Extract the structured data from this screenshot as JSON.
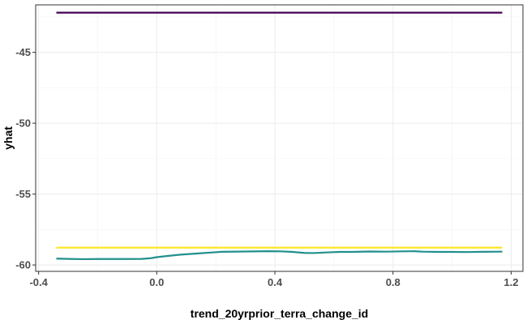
{
  "chart_data": {
    "type": "line",
    "title": "",
    "xlabel": "trend_20yrprior_terra_change_id",
    "ylabel": "yhat",
    "xlim": [
      -0.41,
      1.24
    ],
    "ylim": [
      -60.45,
      -41.65
    ],
    "xticks": [
      -0.4,
      0.0,
      0.4,
      0.8,
      1.2
    ],
    "xtick_labels": [
      "-0.4",
      "0.0",
      "0.4",
      "0.8",
      "1.2"
    ],
    "yticks": [
      -60,
      -55,
      -50,
      -45
    ],
    "ytick_labels": [
      "-60",
      "-55",
      "-50",
      "-45"
    ],
    "grid": true,
    "legend": "none",
    "series": [
      {
        "color": "#440154",
        "x": [
          -0.34,
          1.17
        ],
        "y": [
          -42.2,
          -42.2
        ]
      },
      {
        "color": "#21908C",
        "x": [
          -0.34,
          -0.3,
          -0.25,
          -0.2,
          -0.15,
          -0.1,
          -0.05,
          -0.02,
          0.0,
          0.03,
          0.08,
          0.15,
          0.22,
          0.3,
          0.38,
          0.42,
          0.46,
          0.5,
          0.53,
          0.58,
          0.62,
          0.66,
          0.72,
          0.78,
          0.83,
          0.87,
          0.9,
          0.95,
          1.0,
          1.05,
          1.1,
          1.17
        ],
        "y": [
          -59.55,
          -59.57,
          -59.59,
          -59.58,
          -59.58,
          -59.58,
          -59.57,
          -59.52,
          -59.45,
          -59.38,
          -59.27,
          -59.17,
          -59.07,
          -59.05,
          -59.03,
          -59.04,
          -59.08,
          -59.15,
          -59.16,
          -59.11,
          -59.08,
          -59.08,
          -59.05,
          -59.06,
          -59.04,
          -59.03,
          -59.06,
          -59.08,
          -59.08,
          -59.09,
          -59.07,
          -59.06
        ]
      },
      {
        "color": "#FDE725",
        "x": [
          -0.34,
          1.17
        ],
        "y": [
          -58.78,
          -58.78
        ]
      }
    ]
  }
}
